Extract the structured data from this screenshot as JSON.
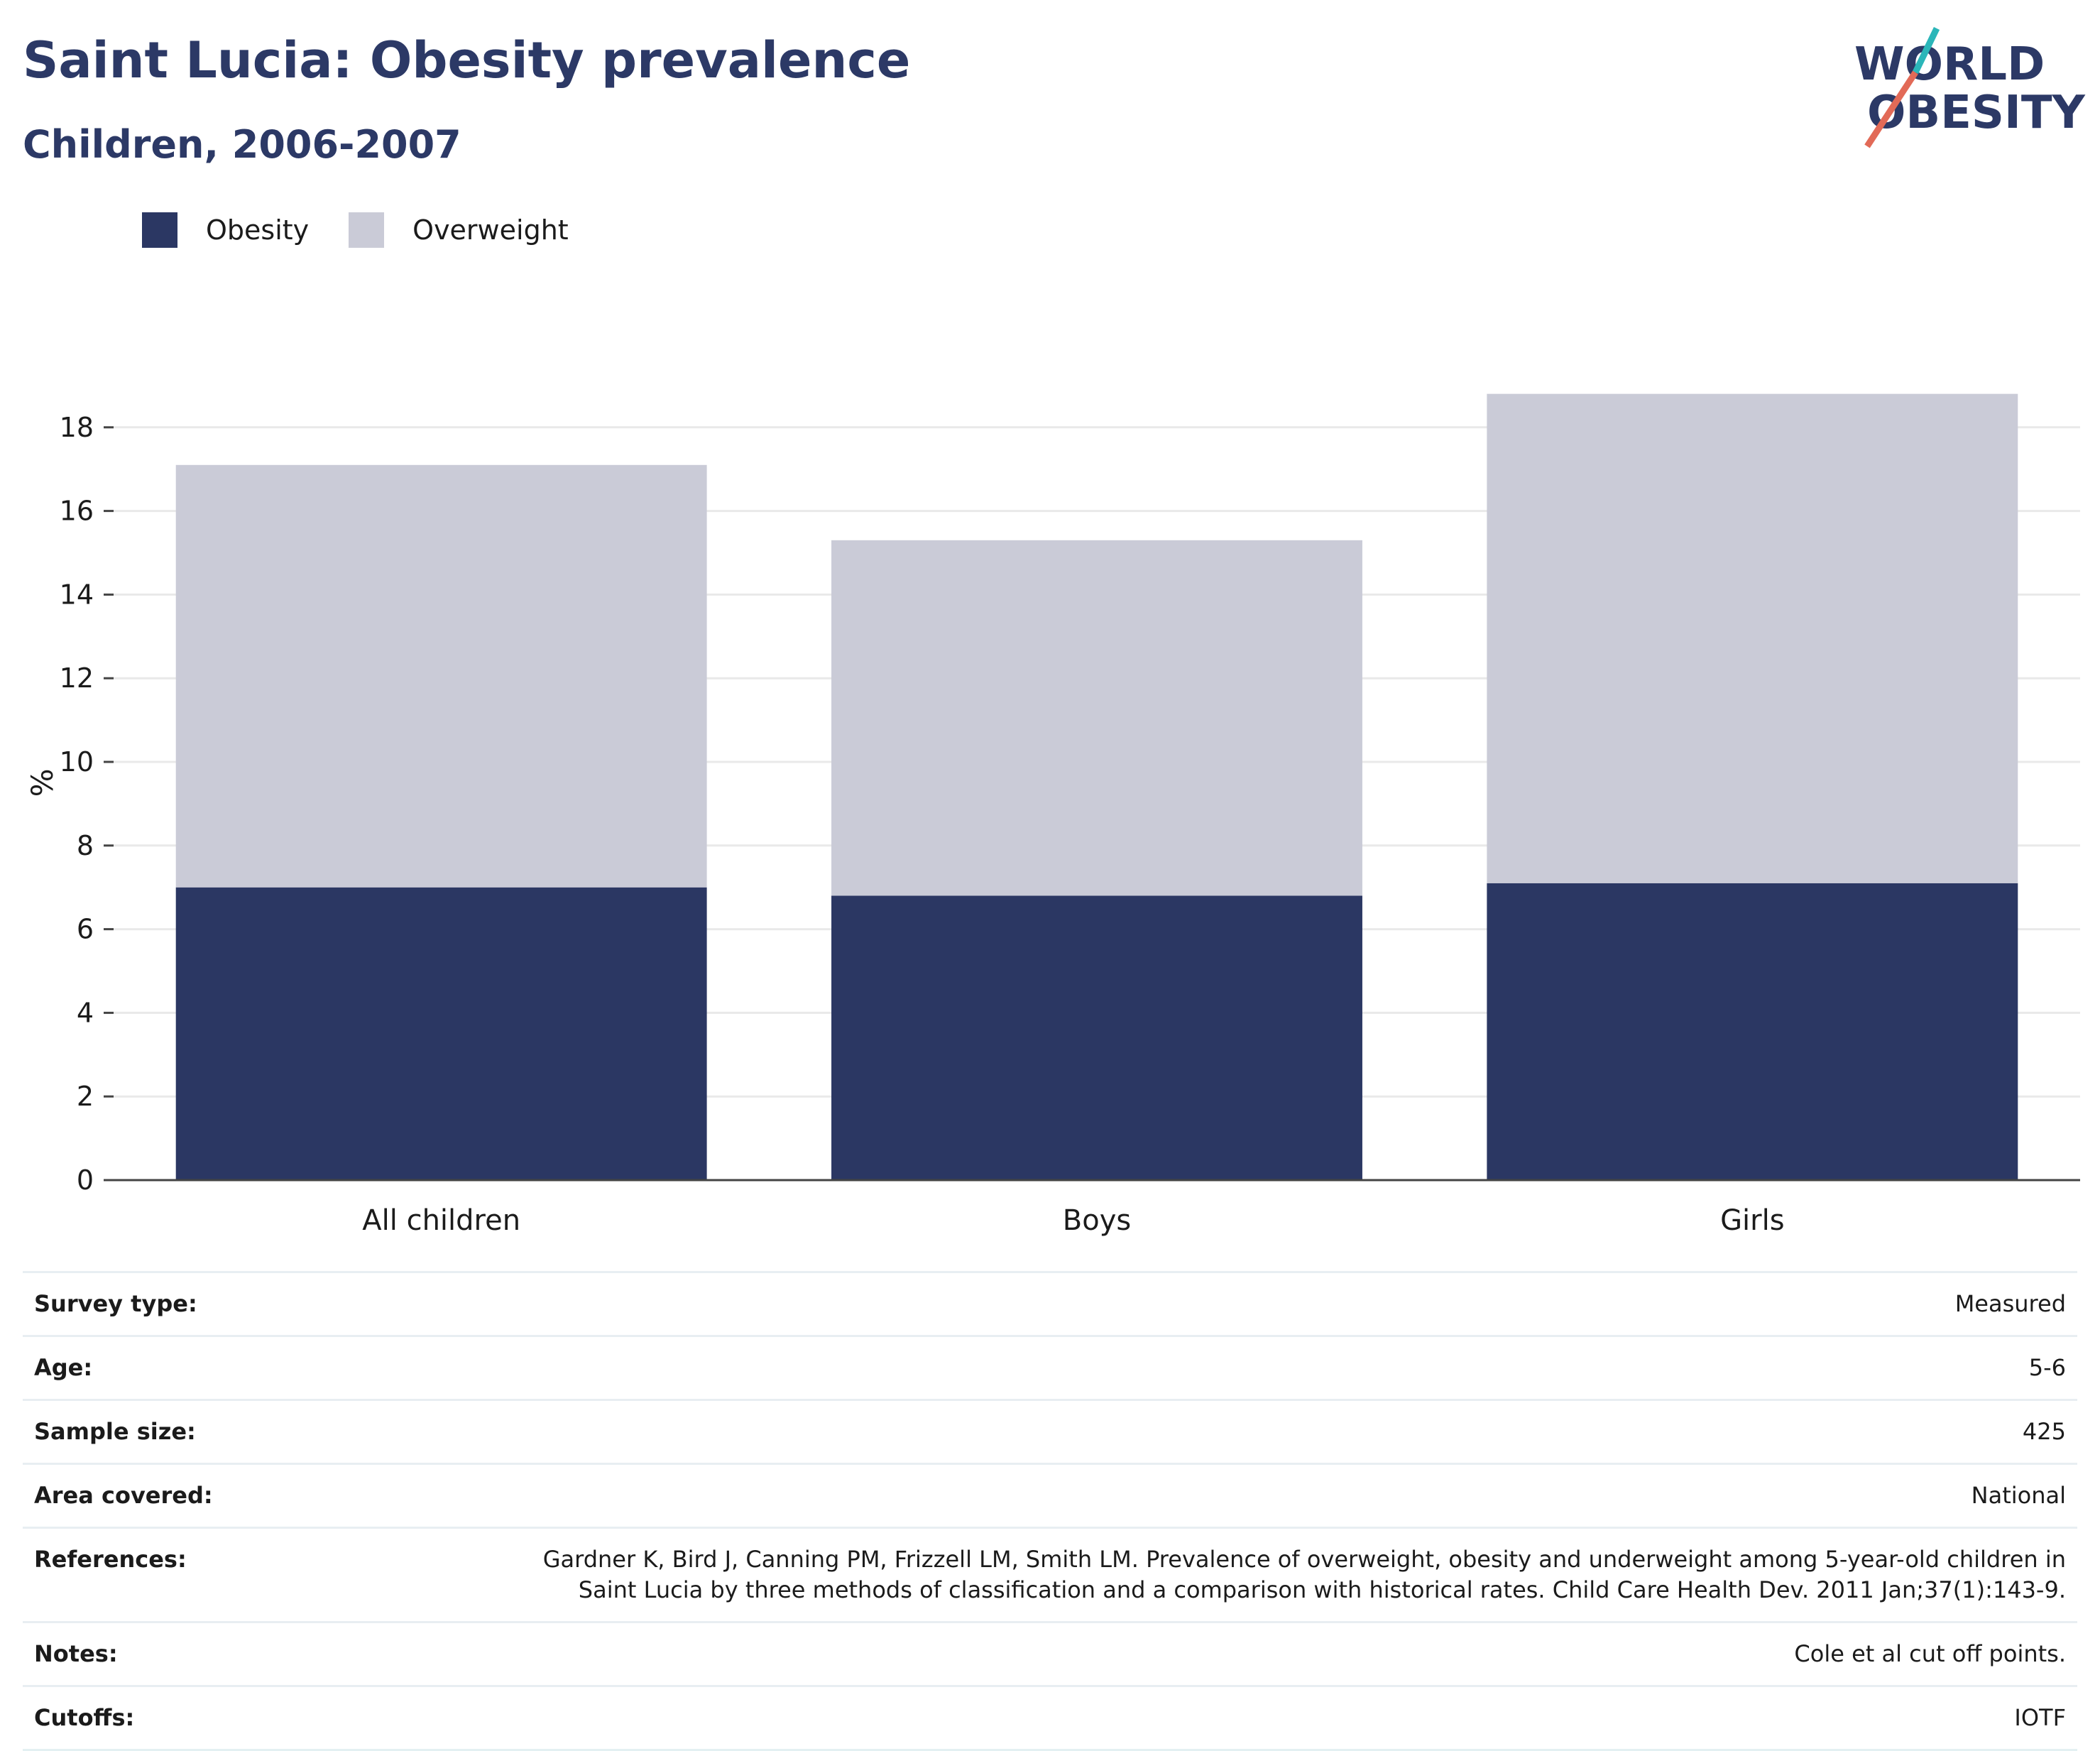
{
  "title": "Saint Lucia: Obesity prevalence",
  "subtitle": "Children, 2006-2007",
  "logo": {
    "line1": "WORLD",
    "line2": "OBESITY",
    "accent_teal": "#2bb6b9",
    "accent_red": "#e26a57",
    "text_color": "#2c3966"
  },
  "legend": [
    {
      "label": "Obesity",
      "color": "#2b3763"
    },
    {
      "label": "Overweight",
      "color": "#cacbd7"
    }
  ],
  "chart_data": {
    "type": "bar",
    "stacked": true,
    "categories": [
      "All children",
      "Boys",
      "Girls"
    ],
    "series": [
      {
        "name": "Obesity",
        "values": [
          7.0,
          6.8,
          7.1
        ],
        "color": "#2b3763"
      },
      {
        "name": "Overweight",
        "values": [
          10.1,
          8.5,
          11.7
        ],
        "color": "#cacbd7"
      }
    ],
    "ylabel": "%",
    "ylim": [
      0,
      19
    ],
    "yticks": [
      0,
      2,
      4,
      6,
      8,
      10,
      12,
      14,
      16,
      18
    ],
    "grid": true,
    "legend_position": "top-left"
  },
  "info": [
    {
      "key": "Survey type:",
      "value": "Measured"
    },
    {
      "key": "Age:",
      "value": "5-6"
    },
    {
      "key": "Sample size:",
      "value": "425"
    },
    {
      "key": "Area covered:",
      "value": "National"
    },
    {
      "key": "References:",
      "value": "Gardner K, Bird J, Canning PM, Frizzell LM, Smith LM. Prevalence of overweight, obesity and underweight among 5-year-old children in Saint Lucia by three methods of classification and a comparison with historical rates. Child Care Health Dev. 2011 Jan;37(1):143-9."
    },
    {
      "key": "Notes:",
      "value": "Cole et al cut off points."
    },
    {
      "key": "Cutoffs:",
      "value": "IOTF"
    }
  ]
}
